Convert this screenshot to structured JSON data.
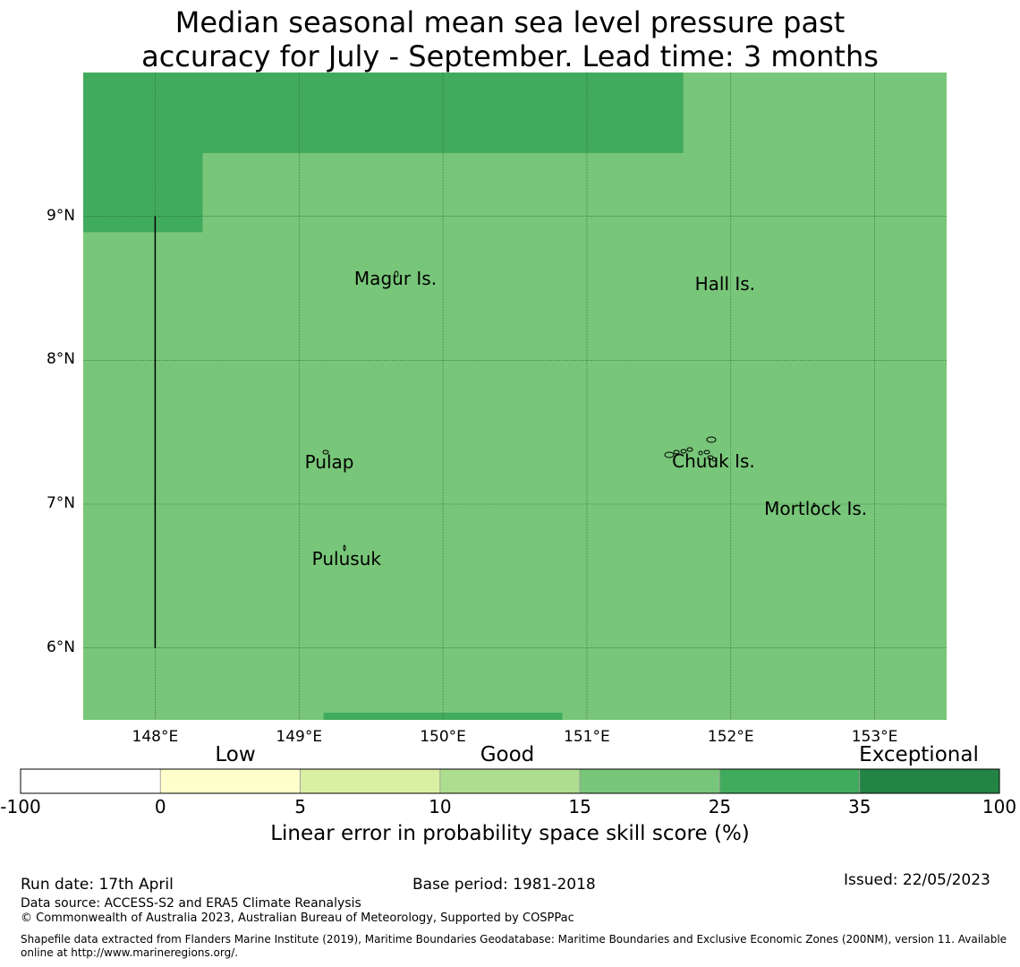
{
  "title": {
    "line1": "Median seasonal mean sea level pressure past",
    "line2": "accuracy for July - September. Lead time: 3 months"
  },
  "map": {
    "lon_range": [
      147.5,
      153.5
    ],
    "lat_range": [
      5.5,
      10.0
    ],
    "lon_ticks": [
      {
        "value": 148,
        "label": "148°E"
      },
      {
        "value": 149,
        "label": "149°E"
      },
      {
        "value": 150,
        "label": "150°E"
      },
      {
        "value": 151,
        "label": "151°E"
      },
      {
        "value": 152,
        "label": "152°E"
      },
      {
        "value": 153,
        "label": "153°E"
      }
    ],
    "lat_ticks": [
      {
        "value": 9,
        "label": "9°N"
      },
      {
        "value": 8,
        "label": "8°N"
      },
      {
        "value": 7,
        "label": "7°N"
      },
      {
        "value": 6,
        "label": "6°N"
      }
    ],
    "gridlines": true,
    "background_color": "#78c679",
    "skill_regions": [
      {
        "lon": [
          147.5,
          151.67
        ],
        "lat": [
          9.44,
          10.0
        ],
        "color": "#41ab5d"
      },
      {
        "lon": [
          147.5,
          148.33
        ],
        "lat": [
          8.89,
          9.44
        ],
        "color": "#41ab5d"
      },
      {
        "lon": [
          149.17,
          150.83
        ],
        "lat": [
          5.5,
          5.55
        ],
        "color": "#41ab5d"
      }
    ],
    "boundary_line": {
      "lon": 148.0,
      "lat": [
        6.0,
        9.0
      ]
    },
    "places": [
      {
        "name": "Magur Is.",
        "lon": 149.67,
        "lat": 8.57
      },
      {
        "name": "Hall Is.",
        "lon": 151.96,
        "lat": 8.53
      },
      {
        "name": "Pulap",
        "lon": 149.21,
        "lat": 7.29
      },
      {
        "name": "Chuuk Is.",
        "lon": 151.88,
        "lat": 7.3
      },
      {
        "name": "Mortlock Is.",
        "lon": 152.59,
        "lat": 6.97
      },
      {
        "name": "Pulusuk",
        "lon": 149.33,
        "lat": 6.62
      }
    ]
  },
  "colorbar": {
    "categories": [
      "Low",
      "Good",
      "Exceptional"
    ],
    "ticks": [
      "-100",
      "0",
      "5",
      "10",
      "15",
      "25",
      "35",
      "100"
    ],
    "colors": [
      "#ffffff",
      "#ffffcc",
      "#d9f0a3",
      "#addd8e",
      "#78c679",
      "#41ab5d",
      "#238443"
    ],
    "label": "Linear error in probability space skill score (%)"
  },
  "footer": {
    "run_date": "Run date: 17th April",
    "base_period": "Base period: 1981-2018",
    "issued": "Issued: 22/05/2023",
    "data_source": "Data source: ACCESS-S2 and ERA5 Climate Reanalysis",
    "copyright": "© Commonwealth of Australia 2023, Australian Bureau of Meteorology, Supported by COSPPac",
    "shapefile_line1": "Shapefile data extracted from Flanders Marine Institute (2019), Maritime Boundaries Geodatabase: Maritime Boundaries and Exclusive Economic Zones (200NM), version 11. Available",
    "shapefile_line2": "online at http://www.marineregions.org/."
  }
}
